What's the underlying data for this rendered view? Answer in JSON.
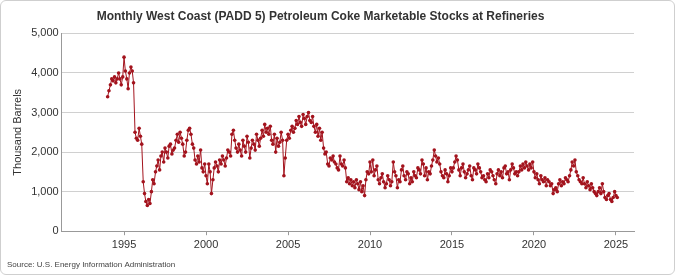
{
  "chart_data": {
    "type": "line",
    "title": "Monthly West Coast (PADD 5) Petroleum Coke Marketable Stocks at Refineries",
    "y_label": "Thousand Barrels",
    "source": "Source: U.S. Energy Information Administration",
    "xlim": [
      1991.2,
      2026.1
    ],
    "xticks": [
      1995,
      2000,
      2005,
      2010,
      2015,
      2020,
      2025
    ],
    "ylim": [
      0,
      5000
    ],
    "yticks": [
      0,
      {
        "value": 1000,
        "label": "1,000"
      },
      {
        "value": 2000,
        "label": "2,000"
      },
      {
        "value": 3000,
        "label": "3,000"
      },
      {
        "value": 4000,
        "label": "4,000"
      },
      {
        "value": 5000,
        "label": "5,000"
      }
    ],
    "grid": "y",
    "series": [
      {
        "color": "#a3131d",
        "marker": "circle",
        "line_style": "solid",
        "x": [
          1994,
          1994.08,
          1994.17,
          1994.25,
          1994.33,
          1994.42,
          1994.5,
          1994.58,
          1994.67,
          1994.75,
          1994.83,
          1994.92,
          1995,
          1995.08,
          1995.17,
          1995.25,
          1995.33,
          1995.42,
          1995.5,
          1995.58,
          1995.67,
          1995.75,
          1995.83,
          1995.92,
          1996,
          1996.08,
          1996.17,
          1996.25,
          1996.33,
          1996.42,
          1996.5,
          1996.58,
          1996.67,
          1996.75,
          1996.83,
          1996.92,
          1997,
          1997.08,
          1997.17,
          1997.25,
          1997.33,
          1997.42,
          1997.5,
          1997.58,
          1997.67,
          1997.75,
          1997.83,
          1997.92,
          1998,
          1998.08,
          1998.17,
          1998.25,
          1998.33,
          1998.42,
          1998.5,
          1998.58,
          1998.67,
          1998.75,
          1998.83,
          1998.92,
          1999,
          1999.08,
          1999.17,
          1999.25,
          1999.33,
          1999.42,
          1999.5,
          1999.58,
          1999.67,
          1999.75,
          1999.83,
          1999.92,
          2000,
          2000.08,
          2000.17,
          2000.25,
          2000.33,
          2000.42,
          2000.5,
          2000.58,
          2000.67,
          2000.75,
          2000.83,
          2000.92,
          2001,
          2001.08,
          2001.17,
          2001.25,
          2001.33,
          2001.42,
          2001.5,
          2001.58,
          2001.67,
          2001.75,
          2001.83,
          2001.92,
          2002,
          2002.08,
          2002.17,
          2002.25,
          2002.33,
          2002.42,
          2002.5,
          2002.58,
          2002.67,
          2002.75,
          2002.83,
          2002.92,
          2003,
          2003.08,
          2003.17,
          2003.25,
          2003.33,
          2003.42,
          2003.5,
          2003.58,
          2003.67,
          2003.75,
          2003.83,
          2003.92,
          2004,
          2004.08,
          2004.17,
          2004.25,
          2004.33,
          2004.42,
          2004.5,
          2004.58,
          2004.67,
          2004.75,
          2004.83,
          2004.92,
          2005,
          2005.08,
          2005.17,
          2005.25,
          2005.33,
          2005.42,
          2005.5,
          2005.58,
          2005.67,
          2005.75,
          2005.83,
          2005.92,
          2006,
          2006.08,
          2006.17,
          2006.25,
          2006.33,
          2006.42,
          2006.5,
          2006.58,
          2006.67,
          2006.75,
          2006.83,
          2006.92,
          2007,
          2007.08,
          2007.17,
          2007.25,
          2007.33,
          2007.42,
          2007.5,
          2007.58,
          2007.67,
          2007.75,
          2007.83,
          2007.92,
          2008,
          2008.08,
          2008.17,
          2008.25,
          2008.33,
          2008.42,
          2008.5,
          2008.58,
          2008.67,
          2008.75,
          2008.83,
          2008.92,
          2009,
          2009.08,
          2009.17,
          2009.25,
          2009.33,
          2009.42,
          2009.5,
          2009.58,
          2009.67,
          2009.75,
          2009.83,
          2009.92,
          2010,
          2010.08,
          2010.17,
          2010.25,
          2010.33,
          2010.42,
          2010.5,
          2010.58,
          2010.67,
          2010.75,
          2010.83,
          2010.92,
          2011,
          2011.08,
          2011.17,
          2011.25,
          2011.33,
          2011.42,
          2011.5,
          2011.58,
          2011.67,
          2011.75,
          2011.83,
          2011.92,
          2012,
          2012.08,
          2012.17,
          2012.25,
          2012.33,
          2012.42,
          2012.5,
          2012.58,
          2012.67,
          2012.75,
          2012.83,
          2012.92,
          2013,
          2013.08,
          2013.17,
          2013.25,
          2013.33,
          2013.42,
          2013.5,
          2013.58,
          2013.67,
          2013.75,
          2013.83,
          2013.92,
          2014,
          2014.08,
          2014.17,
          2014.25,
          2014.33,
          2014.42,
          2014.5,
          2014.58,
          2014.67,
          2014.75,
          2014.83,
          2014.92,
          2015,
          2015.08,
          2015.17,
          2015.25,
          2015.33,
          2015.42,
          2015.5,
          2015.58,
          2015.67,
          2015.75,
          2015.83,
          2015.92,
          2016,
          2016.08,
          2016.17,
          2016.25,
          2016.33,
          2016.42,
          2016.5,
          2016.58,
          2016.67,
          2016.75,
          2016.83,
          2016.92,
          2017,
          2017.08,
          2017.17,
          2017.25,
          2017.33,
          2017.42,
          2017.5,
          2017.58,
          2017.67,
          2017.75,
          2017.83,
          2017.92,
          2018,
          2018.08,
          2018.17,
          2018.25,
          2018.33,
          2018.42,
          2018.5,
          2018.58,
          2018.67,
          2018.75,
          2018.83,
          2018.92,
          2019,
          2019.08,
          2019.17,
          2019.25,
          2019.33,
          2019.42,
          2019.5,
          2019.58,
          2019.67,
          2019.75,
          2019.83,
          2019.92,
          2020,
          2020.08,
          2020.17,
          2020.25,
          2020.33,
          2020.42,
          2020.5,
          2020.58,
          2020.67,
          2020.75,
          2020.83,
          2020.92,
          2021,
          2021.08,
          2021.17,
          2021.25,
          2021.33,
          2021.42,
          2021.5,
          2021.58,
          2021.67,
          2021.75,
          2021.83,
          2021.92,
          2022,
          2022.08,
          2022.17,
          2022.25,
          2022.33,
          2022.42,
          2022.5,
          2022.58,
          2022.67,
          2022.75,
          2022.83,
          2022.92,
          2023,
          2023.08,
          2023.17,
          2023.25,
          2023.33,
          2023.42,
          2023.5,
          2023.58,
          2023.67,
          2023.75,
          2023.83,
          2023.92,
          2024,
          2024.08,
          2024.17,
          2024.25,
          2024.33,
          2024.42,
          2024.5,
          2024.58,
          2024.67,
          2024.75,
          2024.83,
          2024.92,
          2025,
          2025.08
        ],
        "values": [
          3400,
          3550,
          3700,
          3850,
          3800,
          3900,
          3750,
          3850,
          4000,
          3850,
          3700,
          3900,
          4400,
          4050,
          3850,
          3600,
          4000,
          4150,
          4050,
          3750,
          2500,
          2350,
          2300,
          2600,
          2400,
          2200,
          1250,
          950,
          750,
          650,
          800,
          700,
          1000,
          1300,
          1200,
          1500,
          1650,
          1800,
          1550,
          1900,
          2000,
          1750,
          2100,
          2000,
          1850,
          2150,
          2200,
          1950,
          2050,
          2100,
          2300,
          2450,
          2250,
          2500,
          2350,
          2200,
          1900,
          2000,
          2300,
          2550,
          2600,
          2450,
          2200,
          2100,
          1800,
          1700,
          1900,
          1750,
          2050,
          1600,
          1500,
          1700,
          1400,
          1200,
          1700,
          1500,
          950,
          1300,
          1600,
          1750,
          1650,
          1500,
          1800,
          1700,
          1900,
          1800,
          1650,
          1850,
          2050,
          2000,
          1900,
          2450,
          2550,
          2300,
          2100,
          2000,
          2200,
          2050,
          1900,
          2300,
          2150,
          2000,
          2400,
          2250,
          1850,
          2100,
          2300,
          2200,
          2050,
          2450,
          2300,
          2150,
          2350,
          2550,
          2400,
          2700,
          2500,
          2600,
          2450,
          2650,
          2300,
          2200,
          2450,
          2000,
          2350,
          2150,
          2250,
          2500,
          2300,
          1400,
          1850,
          2300,
          2450,
          2350,
          2550,
          2650,
          2500,
          2600,
          2800,
          2700,
          2900,
          2750,
          2650,
          2950,
          2850,
          2700,
          2900,
          3000,
          2800,
          2750,
          2900,
          2650,
          2500,
          2700,
          2400,
          2600,
          2300,
          2500,
          2100,
          1950,
          2000,
          1700,
          1650,
          1850,
          1800,
          1900,
          1750,
          1700,
          1600,
          1550,
          1900,
          1700,
          1650,
          1800,
          1600,
          1250,
          1350,
          1200,
          1300,
          1150,
          1250,
          1100,
          1300,
          1200,
          1050,
          1250,
          1000,
          1150,
          900,
          1300,
          1500,
          1450,
          1750,
          1500,
          1800,
          1400,
          1550,
          1650,
          1300,
          1200,
          1350,
          1450,
          1250,
          1100,
          1200,
          1400,
          1300,
          1150,
          1250,
          1750,
          1500,
          1400,
          1100,
          1300,
          1250,
          1550,
          1650,
          1400,
          1300,
          1500,
          1450,
          1200,
          1350,
          1250,
          1500,
          1400,
          1350,
          1600,
          1550,
          1450,
          1800,
          1700,
          1400,
          1600,
          1300,
          1500,
          1450,
          1650,
          1800,
          2050,
          1900,
          1750,
          1850,
          1700,
          1500,
          1400,
          1350,
          1550,
          1450,
          1250,
          1400,
          1600,
          1500,
          1600,
          1750,
          1900,
          1800,
          1550,
          1400,
          1600,
          1700,
          1500,
          1350,
          1450,
          1550,
          1650,
          1400,
          1300,
          1600,
          1550,
          1450,
          1700,
          1600,
          1500,
          1350,
          1400,
          1300,
          1250,
          1450,
          1350,
          1550,
          1500,
          1400,
          1300,
          1200,
          1450,
          1550,
          1400,
          1500,
          1350,
          1600,
          1650,
          1450,
          1500,
          1300,
          1550,
          1700,
          1600,
          1450,
          1500,
          1400,
          1500,
          1650,
          1550,
          1700,
          1600,
          1750,
          1650,
          1550,
          1700,
          1600,
          1750,
          1500,
          1350,
          1450,
          1300,
          1200,
          1400,
          1300,
          1250,
          1350,
          1150,
          1300,
          1250,
          1150,
          1200,
          950,
          1050,
          1100,
          1000,
          1200,
          1300,
          1150,
          1250,
          1200,
          1350,
          1300,
          1250,
          1400,
          1550,
          1750,
          1650,
          1800,
          1500,
          1400,
          1300,
          1250,
          1200,
          1350,
          1200,
          1100,
          1250,
          1150,
          1050,
          1200,
          1100,
          1000,
          950,
          900,
          1000,
          1100,
          950,
          1200,
          1000,
          850,
          800,
          900,
          950,
          800,
          750,
          850,
          1000,
          900,
          850
        ]
      }
    ]
  }
}
